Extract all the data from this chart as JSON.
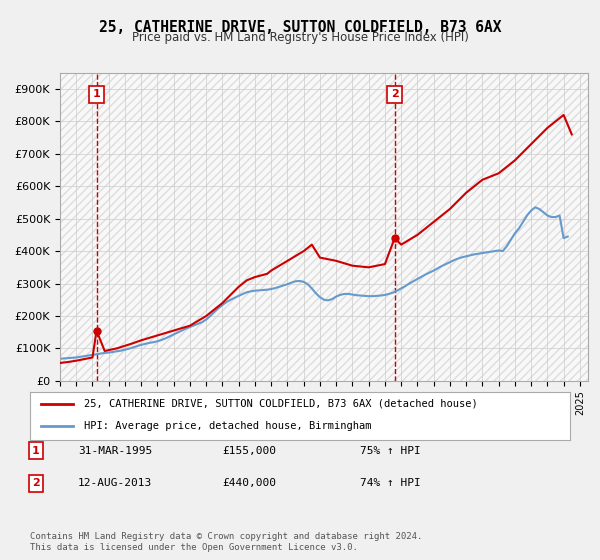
{
  "title": "25, CATHERINE DRIVE, SUTTON COLDFIELD, B73 6AX",
  "subtitle": "Price paid vs. HM Land Registry's House Price Index (HPI)",
  "ylabel_ticks": [
    "£0",
    "£100K",
    "£200K",
    "£300K",
    "£400K",
    "£500K",
    "£600K",
    "£700K",
    "£800K",
    "£900K"
  ],
  "ytick_values": [
    0,
    100000,
    200000,
    300000,
    400000,
    500000,
    600000,
    700000,
    800000,
    900000
  ],
  "ylim": [
    0,
    950000
  ],
  "sale1_date": 1995.25,
  "sale1_price": 155000,
  "sale2_date": 2013.6,
  "sale2_price": 440000,
  "sale1_label": "1",
  "sale2_label": "2",
  "legend_line1": "25, CATHERINE DRIVE, SUTTON COLDFIELD, B73 6AX (detached house)",
  "legend_line2": "HPI: Average price, detached house, Birmingham",
  "table_row1": [
    "1",
    "31-MAR-1995",
    "£155,000",
    "75% ↑ HPI"
  ],
  "table_row2": [
    "2",
    "12-AUG-2013",
    "£440,000",
    "74% ↑ HPI"
  ],
  "footer": "Contains HM Land Registry data © Crown copyright and database right 2024.\nThis data is licensed under the Open Government Licence v3.0.",
  "price_color": "#cc0000",
  "hpi_color": "#6699cc",
  "background_color": "#f0f0f0",
  "plot_bg_color": "#ffffff",
  "hpi_data": {
    "years": [
      1993.0,
      1993.25,
      1993.5,
      1993.75,
      1994.0,
      1994.25,
      1994.5,
      1994.75,
      1995.0,
      1995.25,
      1995.5,
      1995.75,
      1996.0,
      1996.25,
      1996.5,
      1996.75,
      1997.0,
      1997.25,
      1997.5,
      1997.75,
      1998.0,
      1998.25,
      1998.5,
      1998.75,
      1999.0,
      1999.25,
      1999.5,
      1999.75,
      2000.0,
      2000.25,
      2000.5,
      2000.75,
      2001.0,
      2001.25,
      2001.5,
      2001.75,
      2002.0,
      2002.25,
      2002.5,
      2002.75,
      2003.0,
      2003.25,
      2003.5,
      2003.75,
      2004.0,
      2004.25,
      2004.5,
      2004.75,
      2005.0,
      2005.25,
      2005.5,
      2005.75,
      2006.0,
      2006.25,
      2006.5,
      2006.75,
      2007.0,
      2007.25,
      2007.5,
      2007.75,
      2008.0,
      2008.25,
      2008.5,
      2008.75,
      2009.0,
      2009.25,
      2009.5,
      2009.75,
      2010.0,
      2010.25,
      2010.5,
      2010.75,
      2011.0,
      2011.25,
      2011.5,
      2011.75,
      2012.0,
      2012.25,
      2012.5,
      2012.75,
      2013.0,
      2013.25,
      2013.5,
      2013.75,
      2014.0,
      2014.25,
      2014.5,
      2014.75,
      2015.0,
      2015.25,
      2015.5,
      2015.75,
      2016.0,
      2016.25,
      2016.5,
      2016.75,
      2017.0,
      2017.25,
      2017.5,
      2017.75,
      2018.0,
      2018.25,
      2018.5,
      2018.75,
      2019.0,
      2019.25,
      2019.5,
      2019.75,
      2020.0,
      2020.25,
      2020.5,
      2020.75,
      2021.0,
      2021.25,
      2021.5,
      2021.75,
      2022.0,
      2022.25,
      2022.5,
      2022.75,
      2023.0,
      2023.25,
      2023.5,
      2023.75,
      2024.0,
      2024.25
    ],
    "values": [
      68000,
      69000,
      70000,
      71000,
      72000,
      74000,
      76000,
      78000,
      80000,
      82000,
      84000,
      86000,
      87000,
      89000,
      91000,
      93000,
      96000,
      99000,
      103000,
      107000,
      111000,
      114000,
      117000,
      119000,
      122000,
      126000,
      131000,
      137000,
      143000,
      149000,
      155000,
      161000,
      166000,
      171000,
      176000,
      181000,
      189000,
      200000,
      212000,
      224000,
      234000,
      243000,
      250000,
      256000,
      262000,
      268000,
      273000,
      276000,
      278000,
      279000,
      280000,
      281000,
      283000,
      286000,
      290000,
      294000,
      298000,
      303000,
      307000,
      308000,
      305000,
      298000,
      285000,
      270000,
      258000,
      250000,
      248000,
      252000,
      260000,
      265000,
      268000,
      268000,
      266000,
      264000,
      263000,
      262000,
      261000,
      261000,
      262000,
      263000,
      265000,
      268000,
      272000,
      278000,
      285000,
      292000,
      300000,
      307000,
      314000,
      321000,
      328000,
      334000,
      340000,
      347000,
      354000,
      360000,
      366000,
      372000,
      377000,
      381000,
      384000,
      387000,
      390000,
      392000,
      394000,
      396000,
      398000,
      400000,
      402000,
      400000,
      415000,
      435000,
      455000,
      470000,
      490000,
      510000,
      525000,
      535000,
      530000,
      520000,
      510000,
      505000,
      505000,
      510000,
      440000,
      445000
    ]
  },
  "price_data": {
    "years": [
      1993.0,
      1993.5,
      1994.0,
      1994.5,
      1995.0,
      1995.25,
      1995.75,
      1996.5,
      1997.5,
      1998.0,
      1999.0,
      2000.0,
      2001.0,
      2002.0,
      2003.0,
      2004.0,
      2004.5,
      2005.0,
      2005.75,
      2006.0,
      2007.0,
      2008.0,
      2008.5,
      2009.0,
      2010.0,
      2011.0,
      2012.0,
      2013.0,
      2013.6,
      2014.0,
      2015.0,
      2016.0,
      2017.0,
      2018.0,
      2019.0,
      2020.0,
      2021.0,
      2022.0,
      2023.0,
      2023.5,
      2024.0,
      2024.25,
      2024.5
    ],
    "values": [
      55000,
      58000,
      62000,
      67000,
      72000,
      155000,
      92000,
      100000,
      116000,
      125000,
      140000,
      155000,
      170000,
      200000,
      240000,
      290000,
      310000,
      320000,
      330000,
      340000,
      370000,
      400000,
      420000,
      380000,
      370000,
      355000,
      350000,
      360000,
      440000,
      420000,
      450000,
      490000,
      530000,
      580000,
      620000,
      640000,
      680000,
      730000,
      780000,
      800000,
      820000,
      790000,
      760000
    ]
  }
}
